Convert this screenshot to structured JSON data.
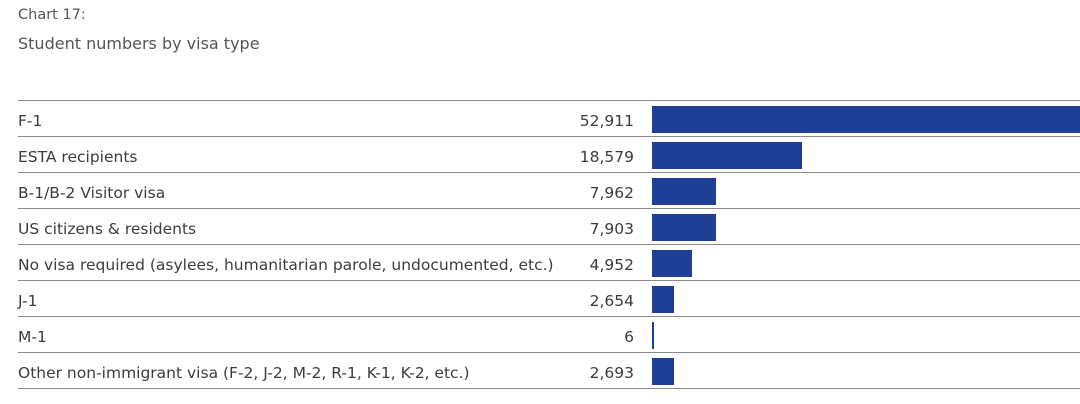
{
  "header": {
    "chart_number": "Chart 17:",
    "title": "Student numbers by visa type"
  },
  "colors": {
    "bar": "#1f3f96",
    "text": "#3c3c3c",
    "rule": "#8a8a8a"
  },
  "chart_data": {
    "type": "bar",
    "orientation": "horizontal",
    "title": "Student numbers by visa type",
    "categories": [
      "F-1",
      "ESTA recipients",
      "B-1/B-2 Visitor visa",
      "US citizens & residents",
      "No visa required (asylees, humanitarian parole, undocumented, etc.)",
      "J-1",
      "M-1",
      "Other non-immigrant visa (F-2, J-2, M-2, R-1, K-1, K-2, etc.)"
    ],
    "values": [
      52911,
      18579,
      7962,
      7903,
      4952,
      2654,
      6,
      2693
    ],
    "value_labels": [
      "52,911",
      "18,579",
      "7,962",
      "7,903",
      "4,952",
      "2,654",
      "6",
      "2,693"
    ],
    "xlim": [
      0,
      52911
    ],
    "grid": false,
    "legend": "none"
  }
}
